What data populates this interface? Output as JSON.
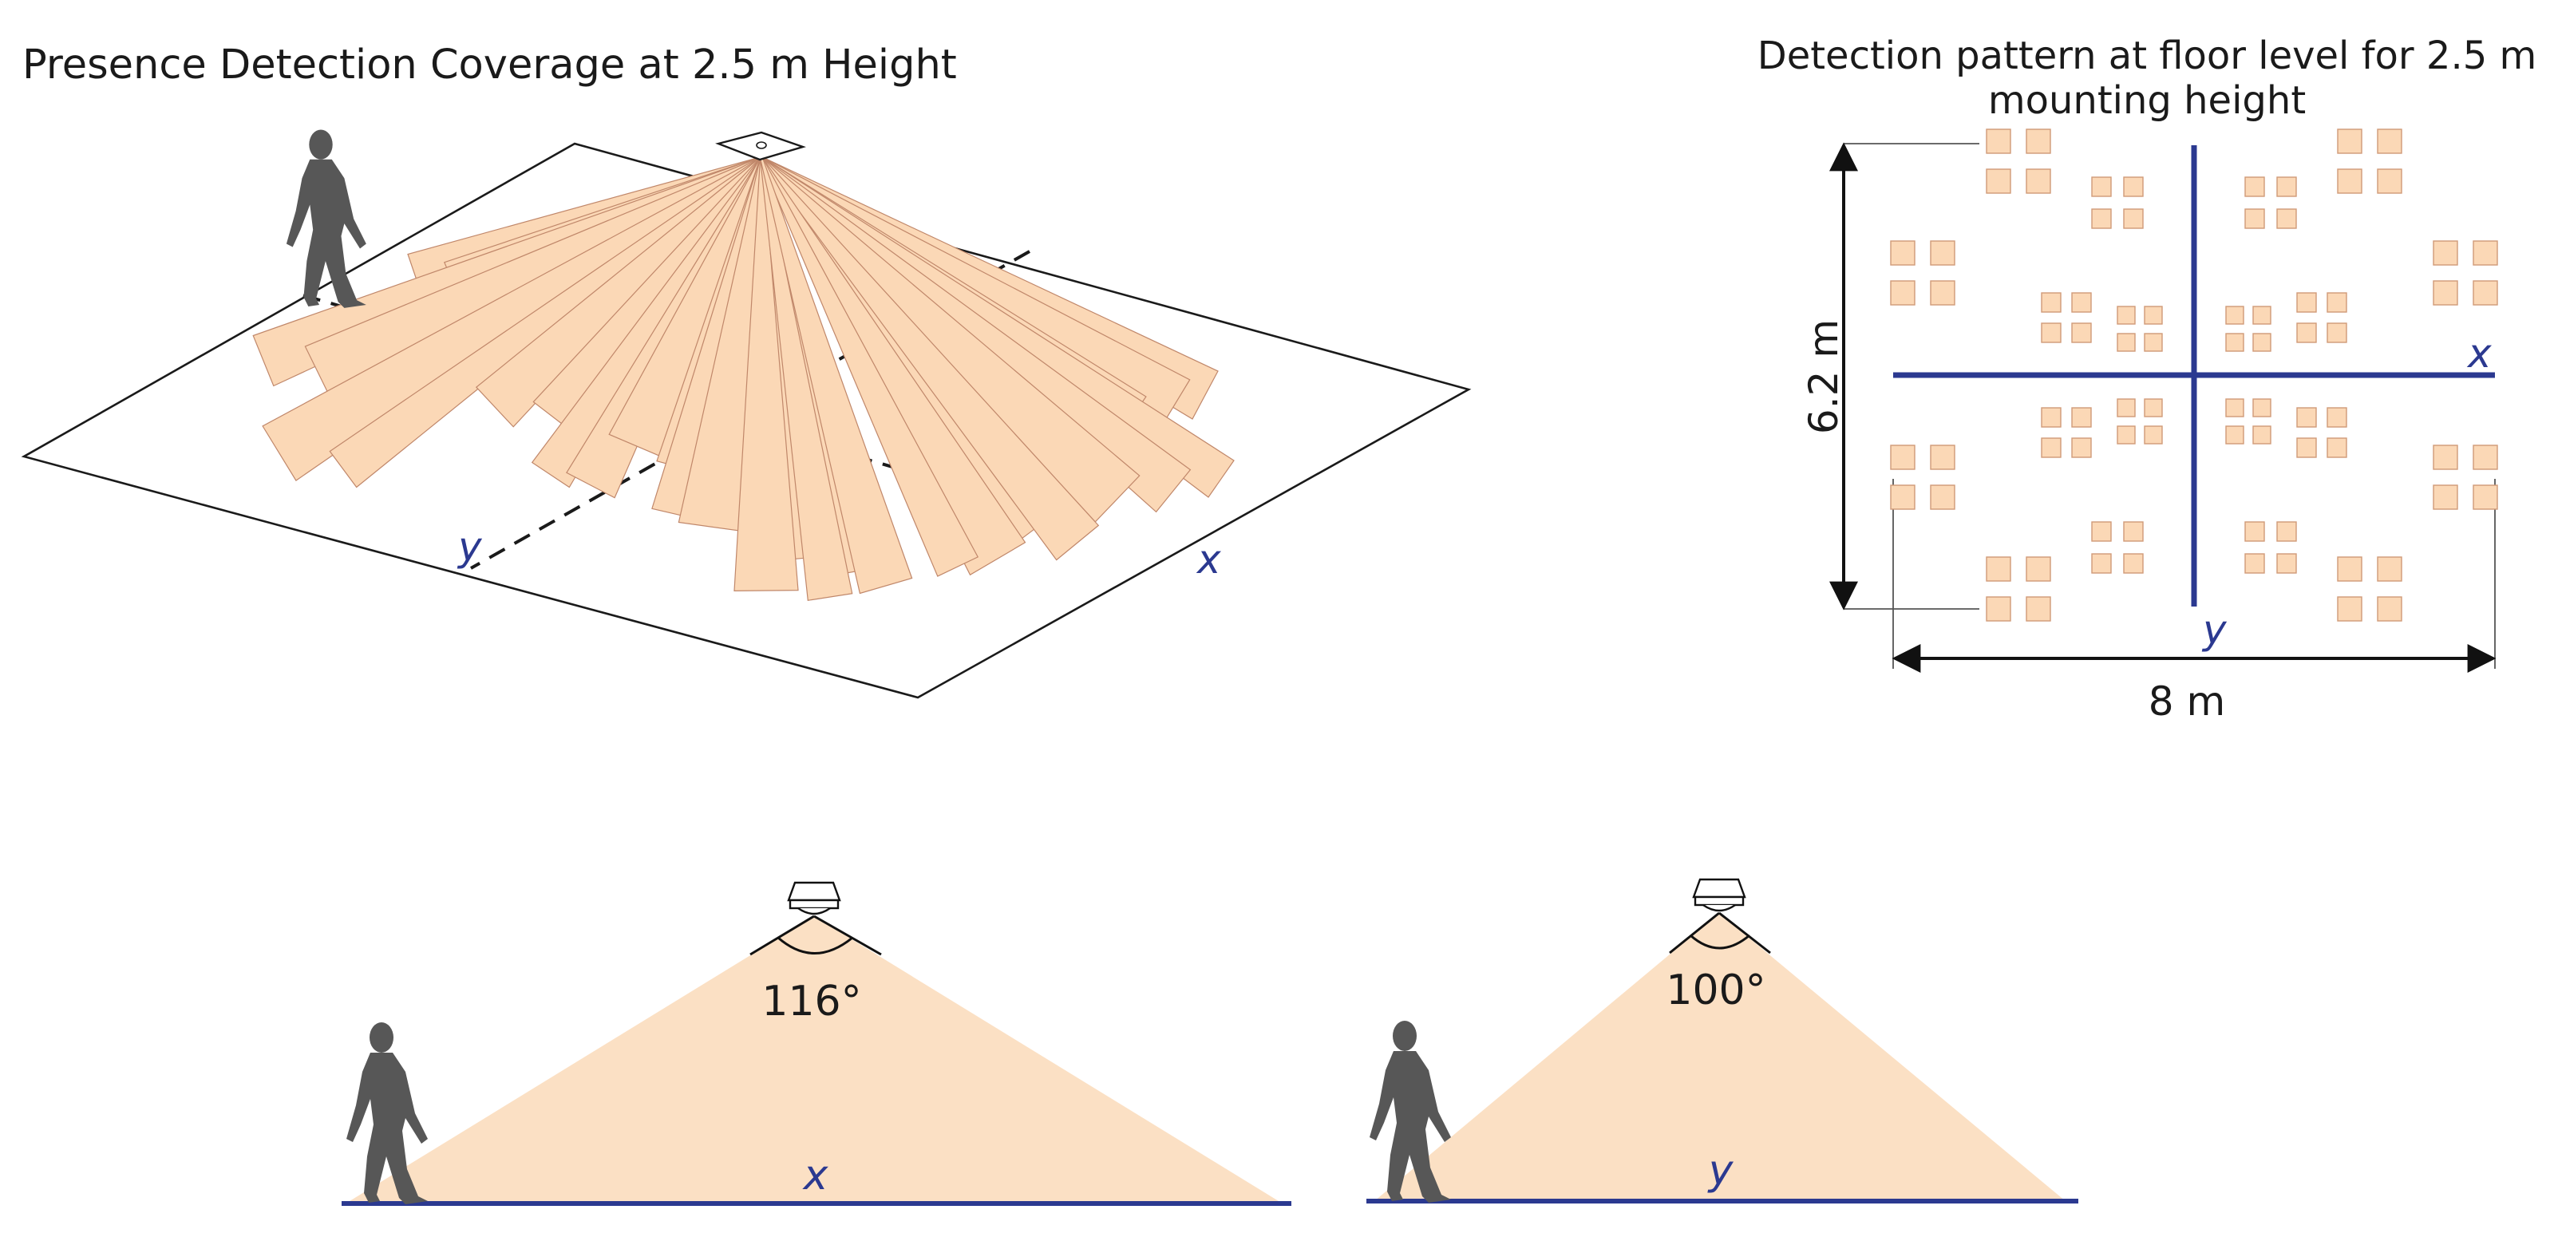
{
  "main_diagram": {
    "title": "Presence Detection Coverage at 2.5 m Height",
    "axis_x": "x",
    "axis_y": "y"
  },
  "floor_pattern": {
    "title_line1": "Detection pattern at floor level for 2.5 m",
    "title_line2": "mounting height",
    "height_label": "6.2 m",
    "width_label": "8 m",
    "axis_x": "x",
    "axis_y": "y"
  },
  "side_view_x": {
    "angle_label": "116°",
    "axis_label": "x"
  },
  "side_view_y": {
    "angle_label": "100°",
    "axis_label": "y"
  },
  "colors": {
    "coverage_fill": "#fbd8b6",
    "coverage_stroke": "#c0876a",
    "axis_blue": "#2b3990",
    "person": "#575757"
  }
}
